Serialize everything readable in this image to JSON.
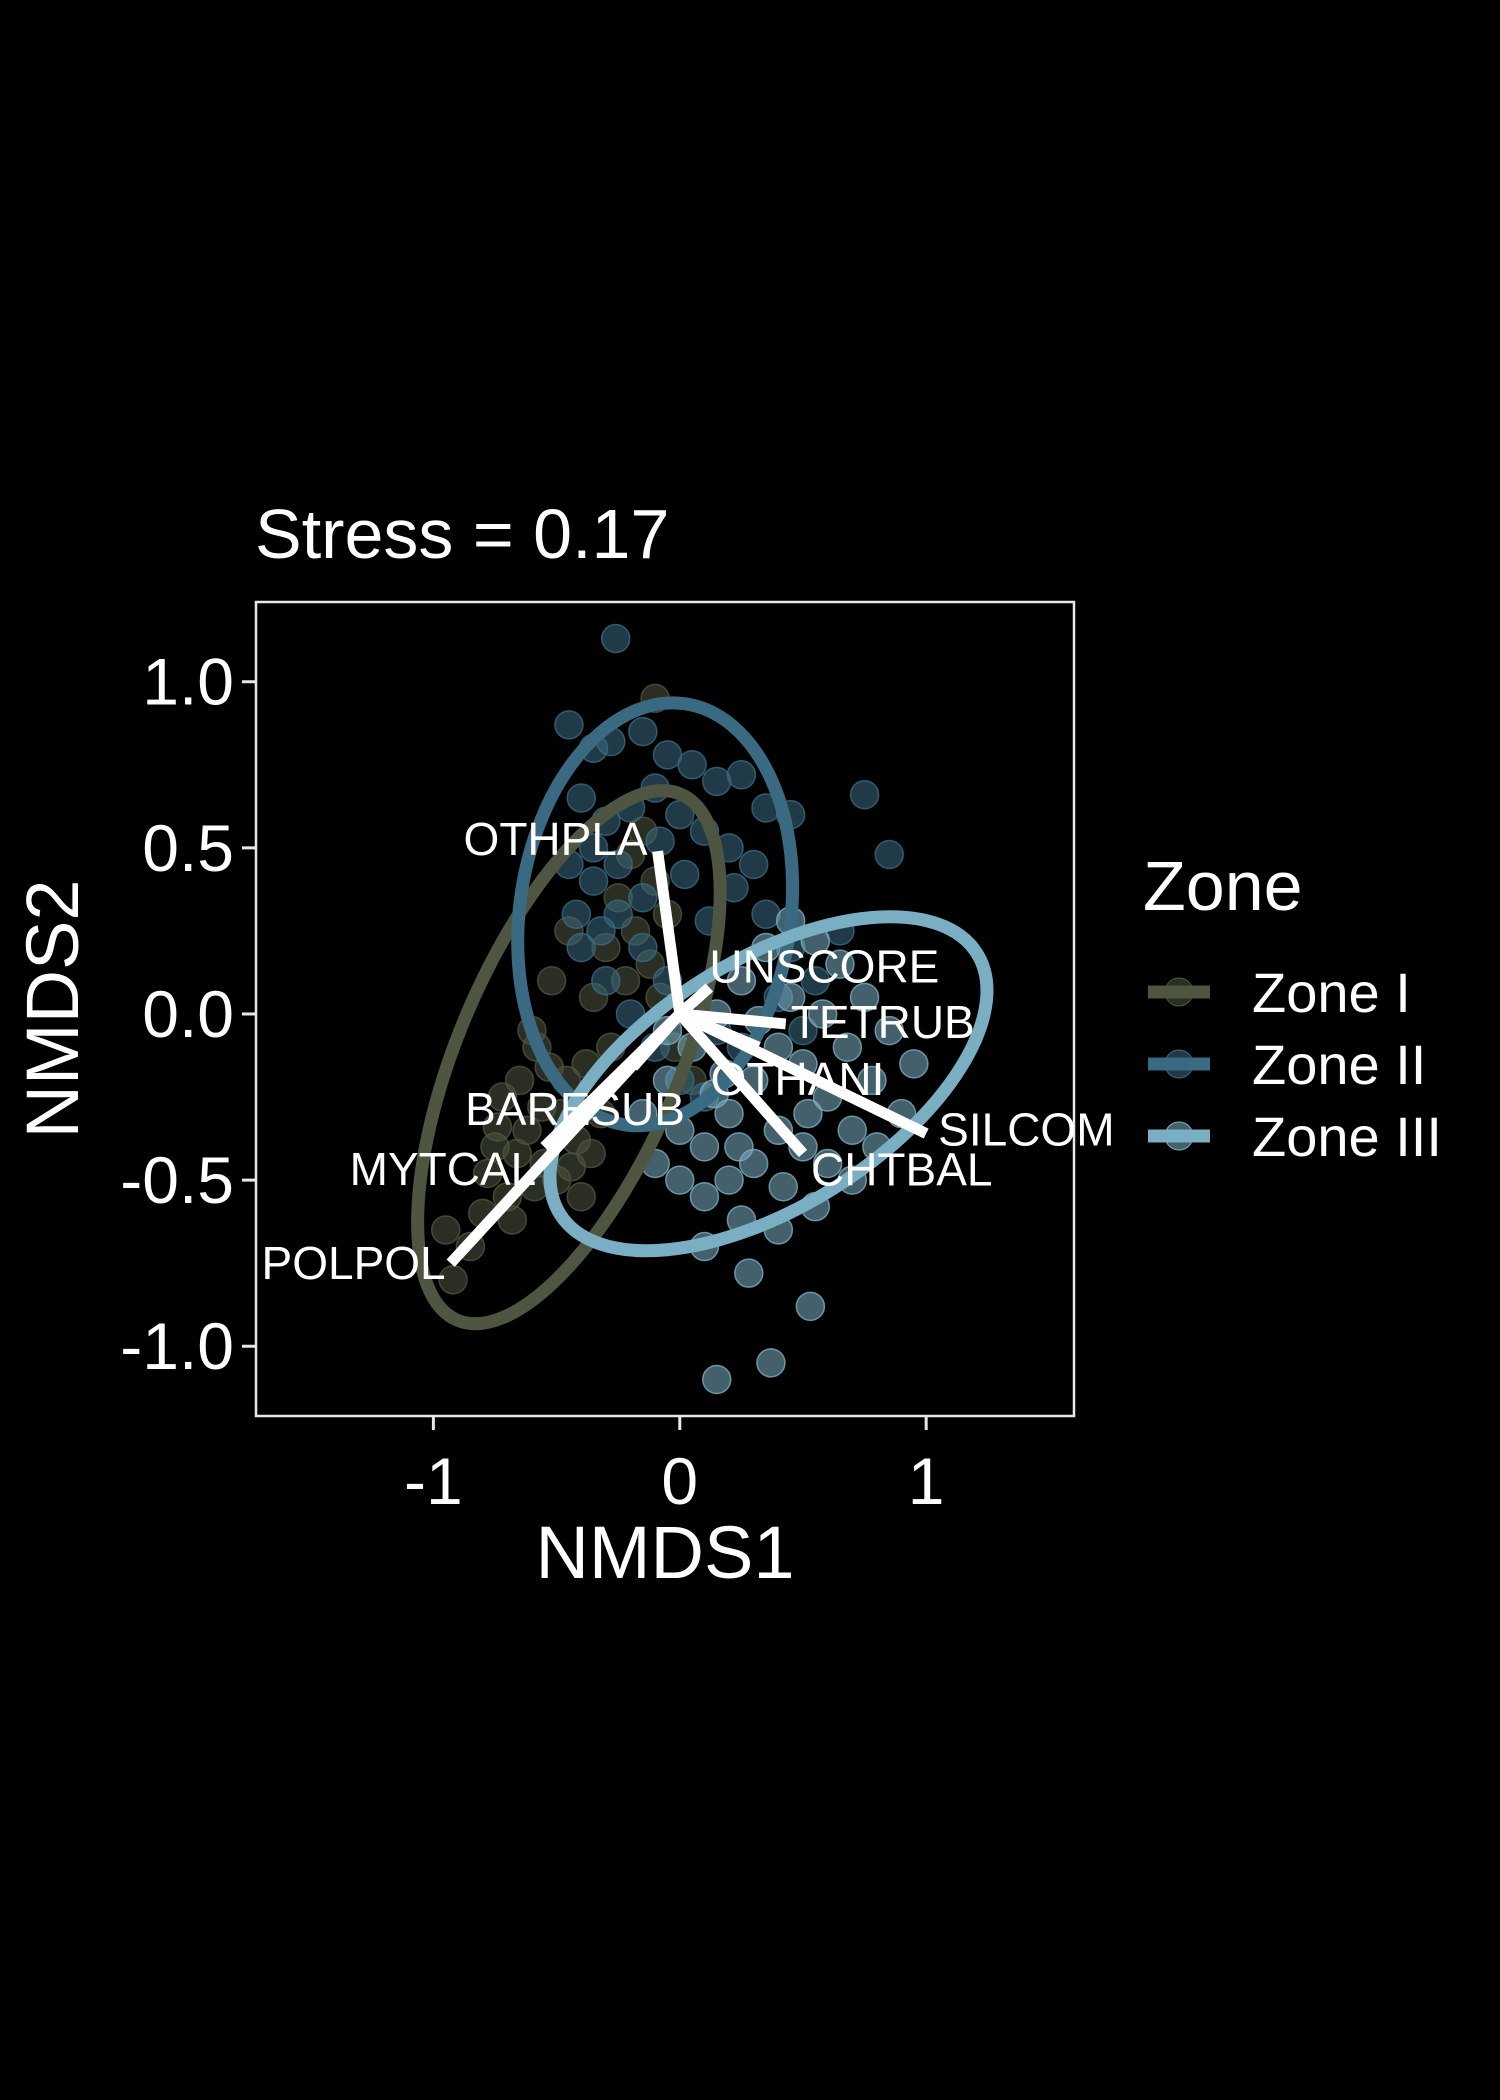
{
  "chart_data": {
    "type": "scatter",
    "title": "Stress = 0.17",
    "xlabel": "NMDS1",
    "ylabel": "NMDS2",
    "xlim": [
      -1.72,
      1.6
    ],
    "ylim": [
      -1.21,
      1.24
    ],
    "xticks": [
      -1,
      0,
      1
    ],
    "xtick_labels": [
      "-1",
      "0",
      "1"
    ],
    "yticks": [
      -1.0,
      -0.5,
      0.0,
      0.5,
      1.0
    ],
    "ytick_labels": [
      "-1.0",
      "-0.5",
      "0.0",
      "0.5",
      "1.0"
    ],
    "grid": false,
    "legend": {
      "title": "Zone",
      "placement": "right",
      "entries": [
        {
          "name": "Zone I",
          "color": "#4e5540"
        },
        {
          "name": "Zone II",
          "color": "#3a6a82"
        },
        {
          "name": "Zone III",
          "color": "#7aaec2"
        }
      ]
    },
    "series": [
      {
        "name": "Zone I",
        "color": "#4e5540",
        "ellipse": {
          "cx": -0.45,
          "cy": -0.13,
          "rx": 0.45,
          "ry": 0.86,
          "angle_deg": 23
        },
        "points": [
          [
            -0.1,
            0.95
          ],
          [
            -0.75,
            -0.4
          ],
          [
            -0.62,
            -0.35
          ],
          [
            -0.55,
            -0.45
          ],
          [
            -0.48,
            -0.3
          ],
          [
            -0.7,
            -0.55
          ],
          [
            -0.65,
            -0.2
          ],
          [
            -0.58,
            -0.1
          ],
          [
            -0.8,
            -0.6
          ],
          [
            -0.72,
            -0.25
          ],
          [
            -0.5,
            -0.5
          ],
          [
            -0.42,
            -0.38
          ],
          [
            -0.38,
            -0.15
          ],
          [
            -0.35,
            0.05
          ],
          [
            -0.3,
            0.2
          ],
          [
            -0.25,
            0.35
          ],
          [
            -0.2,
            0.48
          ],
          [
            -0.15,
            0.55
          ],
          [
            -0.1,
            0.4
          ],
          [
            -0.05,
            0.3
          ],
          [
            -0.6,
            -0.05
          ],
          [
            -0.52,
            0.1
          ],
          [
            -0.45,
            0.25
          ],
          [
            -0.4,
            -0.55
          ],
          [
            -0.85,
            -0.7
          ],
          [
            -0.92,
            -0.8
          ],
          [
            -0.95,
            -0.65
          ],
          [
            -0.78,
            -0.48
          ],
          [
            -0.68,
            -0.62
          ],
          [
            -0.56,
            -0.28
          ],
          [
            -0.46,
            -0.2
          ],
          [
            -0.36,
            -0.42
          ],
          [
            -0.32,
            -0.3
          ],
          [
            -0.28,
            -0.1
          ],
          [
            -0.22,
            0.1
          ],
          [
            -0.18,
            0.25
          ],
          [
            -0.12,
            0.15
          ],
          [
            -0.08,
            0.05
          ],
          [
            -0.02,
            -0.1
          ],
          [
            0.05,
            -0.2
          ],
          [
            -0.66,
            -0.42
          ],
          [
            -0.74,
            -0.34
          ],
          [
            -0.59,
            -0.52
          ],
          [
            -0.44,
            -0.46
          ],
          [
            -0.53,
            -0.16
          ]
        ]
      },
      {
        "name": "Zone II",
        "color": "#3a6a82",
        "ellipse": {
          "cx": -0.1,
          "cy": 0.3,
          "rx": 0.55,
          "ry": 0.64,
          "angle_deg": 8
        },
        "points": [
          [
            -0.26,
            1.13
          ],
          [
            -0.45,
            0.87
          ],
          [
            -0.35,
            0.8
          ],
          [
            -0.28,
            0.82
          ],
          [
            -0.15,
            0.85
          ],
          [
            -0.05,
            0.78
          ],
          [
            0.05,
            0.75
          ],
          [
            0.15,
            0.7
          ],
          [
            0.25,
            0.72
          ],
          [
            0.35,
            0.62
          ],
          [
            0.45,
            0.6
          ],
          [
            0.75,
            0.66
          ],
          [
            0.85,
            0.48
          ],
          [
            -0.4,
            0.65
          ],
          [
            -0.3,
            0.58
          ],
          [
            -0.2,
            0.62
          ],
          [
            -0.1,
            0.68
          ],
          [
            0.0,
            0.6
          ],
          [
            0.1,
            0.55
          ],
          [
            0.2,
            0.5
          ],
          [
            0.3,
            0.45
          ],
          [
            -0.45,
            0.45
          ],
          [
            -0.35,
            0.4
          ],
          [
            -0.25,
            0.3
          ],
          [
            -0.15,
            0.2
          ],
          [
            -0.05,
            0.1
          ],
          [
            0.05,
            0.0
          ],
          [
            0.15,
            -0.05
          ],
          [
            0.25,
            -0.1
          ],
          [
            -0.4,
            0.2
          ],
          [
            -0.3,
            0.1
          ],
          [
            -0.2,
            0.0
          ],
          [
            -0.1,
            -0.1
          ],
          [
            0.0,
            -0.2
          ],
          [
            0.1,
            -0.25
          ],
          [
            -0.35,
            0.5
          ],
          [
            -0.25,
            0.45
          ],
          [
            -0.15,
            0.35
          ],
          [
            0.35,
            0.3
          ],
          [
            0.45,
            0.2
          ],
          [
            0.55,
            0.1
          ],
          [
            0.65,
            0.25
          ],
          [
            -0.42,
            0.3
          ],
          [
            -0.32,
            0.25
          ],
          [
            0.22,
            0.38
          ],
          [
            0.12,
            0.28
          ],
          [
            0.02,
            0.42
          ],
          [
            -0.08,
            0.52
          ],
          [
            0.4,
            0.05
          ],
          [
            0.5,
            -0.05
          ]
        ]
      },
      {
        "name": "Zone III",
        "color": "#7aaec2",
        "ellipse": {
          "cx": 0.36,
          "cy": -0.21,
          "rx": 0.5,
          "ry": 0.74,
          "angle_deg": 58
        },
        "points": [
          [
            0.15,
            -1.1
          ],
          [
            0.37,
            -1.05
          ],
          [
            0.53,
            -0.88
          ],
          [
            0.28,
            -0.78
          ],
          [
            0.1,
            -0.7
          ],
          [
            0.25,
            -0.62
          ],
          [
            0.4,
            -0.65
          ],
          [
            0.55,
            -0.58
          ],
          [
            0.7,
            -0.5
          ],
          [
            0.8,
            -0.4
          ],
          [
            0.9,
            -0.3
          ],
          [
            0.95,
            -0.15
          ],
          [
            0.85,
            -0.05
          ],
          [
            0.75,
            0.05
          ],
          [
            0.65,
            0.15
          ],
          [
            0.55,
            0.22
          ],
          [
            0.45,
            0.28
          ],
          [
            0.35,
            0.2
          ],
          [
            0.25,
            0.1
          ],
          [
            0.15,
            0.0
          ],
          [
            0.05,
            -0.1
          ],
          [
            -0.05,
            -0.2
          ],
          [
            -0.15,
            -0.3
          ],
          [
            -0.1,
            -0.45
          ],
          [
            0.0,
            -0.5
          ],
          [
            0.1,
            -0.4
          ],
          [
            0.2,
            -0.3
          ],
          [
            0.3,
            -0.2
          ],
          [
            0.4,
            -0.1
          ],
          [
            0.5,
            -0.15
          ],
          [
            0.6,
            -0.25
          ],
          [
            0.7,
            -0.35
          ],
          [
            0.6,
            -0.45
          ],
          [
            0.5,
            -0.4
          ],
          [
            0.4,
            -0.35
          ],
          [
            0.3,
            -0.45
          ],
          [
            0.2,
            -0.5
          ],
          [
            0.1,
            -0.55
          ],
          [
            0.0,
            -0.35
          ],
          [
            -0.05,
            -0.05
          ],
          [
            0.18,
            -0.18
          ],
          [
            0.32,
            -0.02
          ],
          [
            0.45,
            0.05
          ],
          [
            0.58,
            0.0
          ],
          [
            0.68,
            -0.1
          ],
          [
            0.78,
            -0.2
          ],
          [
            0.52,
            -0.3
          ],
          [
            0.42,
            -0.52
          ],
          [
            0.24,
            -0.4
          ],
          [
            0.14,
            -0.24
          ]
        ]
      }
    ],
    "vectors": [
      {
        "label": "OTHPLA",
        "x": -0.09,
        "y": 0.49
      },
      {
        "label": "UNSCORE",
        "x": 0.12,
        "y": 0.08
      },
      {
        "label": "TETRUB",
        "x": 0.43,
        "y": -0.03
      },
      {
        "label": "OTHANI",
        "x": 0.32,
        "y": -0.1
      },
      {
        "label": "SILCOM",
        "x": 1.0,
        "y": -0.36
      },
      {
        "label": "CHTBAL",
        "x": 0.5,
        "y": -0.42
      },
      {
        "label": "BARESUB",
        "x": -0.19,
        "y": -0.16
      },
      {
        "label": "MYTCAL",
        "x": -0.55,
        "y": -0.4
      },
      {
        "label": "POLPOL",
        "x": -0.93,
        "y": -0.75
      }
    ]
  }
}
